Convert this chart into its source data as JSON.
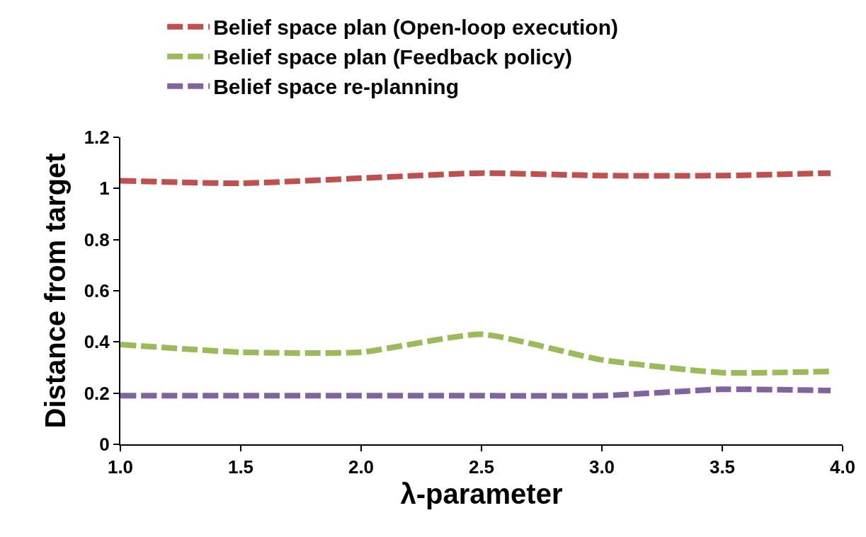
{
  "chart_data": {
    "type": "line",
    "xlabel": "λ-parameter",
    "ylabel": "Distance from target",
    "x": [
      1.0,
      1.5,
      2.0,
      2.5,
      3.0,
      3.5,
      3.95
    ],
    "series": [
      {
        "name": "Belief space plan (Open-loop execution)",
        "color": "#c0504d",
        "values": [
          1.03,
          1.02,
          1.04,
          1.06,
          1.05,
          1.05,
          1.06
        ]
      },
      {
        "name": "Belief space plan (Feedback policy)",
        "color": "#9bbb59",
        "values": [
          0.39,
          0.36,
          0.36,
          0.43,
          0.33,
          0.28,
          0.285
        ]
      },
      {
        "name": "Belief space re-planning",
        "color": "#8064a2",
        "values": [
          0.19,
          0.19,
          0.19,
          0.19,
          0.19,
          0.215,
          0.21
        ]
      }
    ],
    "xlim": [
      1.0,
      4.0
    ],
    "xticks": [
      {
        "value": 1.0,
        "label": "1.0"
      },
      {
        "value": 1.5,
        "label": "1.5"
      },
      {
        "value": 2.0,
        "label": "2.0"
      },
      {
        "value": 2.5,
        "label": "2.5"
      },
      {
        "value": 3.0,
        "label": "3.0"
      },
      {
        "value": 3.5,
        "label": "3.5"
      },
      {
        "value": 4.0,
        "label": "4.0"
      }
    ],
    "ylim": [
      0,
      1.2
    ],
    "yticks": [
      0,
      0.2,
      0.4,
      0.6,
      0.8,
      1,
      1.2
    ],
    "legend": "top",
    "marker": "none",
    "line_style": "dashed"
  }
}
